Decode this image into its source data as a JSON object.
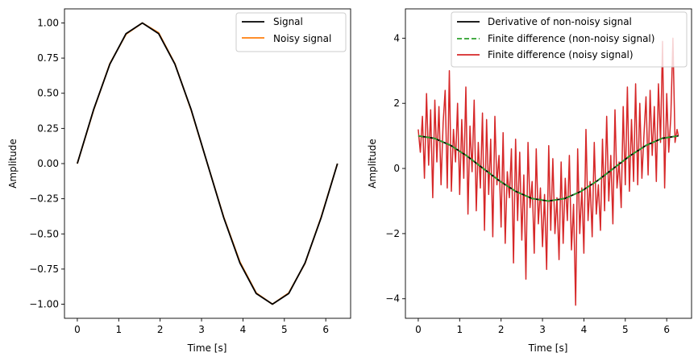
{
  "chart_data": [
    {
      "type": "line",
      "xlabel": "Time [s]",
      "ylabel": "Amplitude",
      "xlim": [
        -0.31,
        6.6
      ],
      "ylim": [
        -1.1,
        1.1
      ],
      "x_ticks": [
        0,
        1,
        2,
        3,
        4,
        5,
        6
      ],
      "y_ticks": [
        -1.0,
        -0.75,
        -0.5,
        -0.25,
        0.0,
        0.25,
        0.5,
        0.75,
        1.0
      ],
      "y_tick_labels": [
        "−1.00",
        "−0.75",
        "−0.50",
        "−0.25",
        "0.00",
        "0.25",
        "0.50",
        "0.75",
        "1.00"
      ],
      "x_tick_labels": [
        "0",
        "1",
        "2",
        "3",
        "4",
        "5",
        "6"
      ],
      "legend_position": "top-right",
      "grid": false,
      "series": [
        {
          "name": "Signal",
          "color": "#000000",
          "style": "solid",
          "x": [
            0,
            0.393,
            0.785,
            1.178,
            1.571,
            1.963,
            2.356,
            2.749,
            3.142,
            3.534,
            3.927,
            4.32,
            4.712,
            5.105,
            5.498,
            5.89,
            6.283
          ],
          "y": [
            0,
            0.383,
            0.707,
            0.924,
            1.0,
            0.924,
            0.707,
            0.383,
            0.0,
            -0.383,
            -0.707,
            -0.924,
            -1.0,
            -0.924,
            -0.707,
            -0.383,
            0.0
          ]
        },
        {
          "name": "Noisy signal",
          "color": "#ff7f0e",
          "style": "solid",
          "x": [
            0,
            0.393,
            0.785,
            1.178,
            1.571,
            1.963,
            2.356,
            2.749,
            3.142,
            3.534,
            3.927,
            4.32,
            4.712,
            5.105,
            5.498,
            5.89,
            6.283
          ],
          "y": [
            0,
            0.38,
            0.71,
            0.92,
            1.0,
            0.93,
            0.71,
            0.38,
            0.0,
            -0.38,
            -0.7,
            -0.92,
            -1.0,
            -0.92,
            -0.71,
            -0.38,
            0.0
          ]
        }
      ]
    },
    {
      "type": "line",
      "xlabel": "Time [s]",
      "ylabel": "Amplitude",
      "xlim": [
        -0.31,
        6.6
      ],
      "ylim": [
        -4.6,
        4.9
      ],
      "x_ticks": [
        0,
        1,
        2,
        3,
        4,
        5,
        6
      ],
      "x_tick_labels": [
        "0",
        "1",
        "2",
        "3",
        "4",
        "5",
        "6"
      ],
      "y_ticks": [
        -4,
        -2,
        0,
        2,
        4
      ],
      "y_tick_labels": [
        "−4",
        "−2",
        "0",
        "2",
        "4"
      ],
      "legend_position": "top-right",
      "grid": false,
      "series": [
        {
          "name": "Derivative of non-noisy signal",
          "color": "#000000",
          "style": "solid",
          "x": [
            0,
            0.393,
            0.785,
            1.178,
            1.571,
            1.963,
            2.356,
            2.749,
            3.142,
            3.534,
            3.927,
            4.32,
            4.712,
            5.105,
            5.498,
            5.89,
            6.283
          ],
          "y": [
            1.0,
            0.924,
            0.707,
            0.383,
            0.0,
            -0.383,
            -0.707,
            -0.924,
            -1.0,
            -0.924,
            -0.707,
            -0.383,
            0.0,
            0.383,
            0.707,
            0.924,
            1.0
          ]
        },
        {
          "name": "Finite difference (non-noisy signal)",
          "color": "#2ca02c",
          "style": "dashed",
          "x": [
            0,
            0.393,
            0.785,
            1.178,
            1.571,
            1.963,
            2.356,
            2.749,
            3.142,
            3.534,
            3.927,
            4.32,
            4.712,
            5.105,
            5.498,
            5.89,
            6.283
          ],
          "y": [
            1.0,
            0.924,
            0.707,
            0.383,
            0.0,
            -0.383,
            -0.707,
            -0.924,
            -1.0,
            -0.924,
            -0.707,
            -0.383,
            0.0,
            0.383,
            0.707,
            0.924,
            1.0
          ]
        },
        {
          "name": "Finite difference (noisy signal)",
          "color": "#d62728",
          "style": "solid",
          "x": [
            0.0,
            0.05,
            0.1,
            0.15,
            0.2,
            0.25,
            0.3,
            0.35,
            0.4,
            0.45,
            0.5,
            0.55,
            0.6,
            0.65,
            0.7,
            0.75,
            0.8,
            0.85,
            0.9,
            0.95,
            1.0,
            1.05,
            1.1,
            1.15,
            1.2,
            1.25,
            1.3,
            1.35,
            1.4,
            1.45,
            1.5,
            1.55,
            1.6,
            1.65,
            1.7,
            1.75,
            1.8,
            1.85,
            1.9,
            1.95,
            2.0,
            2.05,
            2.1,
            2.15,
            2.2,
            2.25,
            2.3,
            2.35,
            2.4,
            2.45,
            2.5,
            2.55,
            2.6,
            2.65,
            2.7,
            2.75,
            2.8,
            2.85,
            2.9,
            2.95,
            3.0,
            3.05,
            3.1,
            3.15,
            3.2,
            3.25,
            3.3,
            3.35,
            3.4,
            3.45,
            3.5,
            3.55,
            3.6,
            3.65,
            3.7,
            3.75,
            3.8,
            3.85,
            3.9,
            3.95,
            4.0,
            4.05,
            4.1,
            4.15,
            4.2,
            4.25,
            4.3,
            4.35,
            4.4,
            4.45,
            4.5,
            4.55,
            4.6,
            4.65,
            4.7,
            4.75,
            4.8,
            4.85,
            4.9,
            4.95,
            5.0,
            5.05,
            5.1,
            5.15,
            5.2,
            5.25,
            5.3,
            5.35,
            5.4,
            5.45,
            5.5,
            5.55,
            5.6,
            5.65,
            5.7,
            5.75,
            5.8,
            5.85,
            5.9,
            5.95,
            6.0,
            6.05,
            6.1,
            6.15,
            6.2,
            6.25,
            6.28
          ],
          "y": [
            1.2,
            0.5,
            1.6,
            -0.3,
            2.3,
            0.1,
            1.8,
            -0.9,
            2.1,
            0.2,
            1.9,
            -0.5,
            1.4,
            2.4,
            -0.6,
            3.0,
            -0.7,
            1.2,
            0.2,
            2.0,
            -0.8,
            1.5,
            -0.3,
            2.5,
            -1.4,
            1.3,
            -0.1,
            2.1,
            -1.3,
            0.8,
            -0.6,
            1.7,
            -1.9,
            1.5,
            -0.8,
            0.9,
            -2.1,
            1.6,
            -0.5,
            0.4,
            -1.8,
            1.1,
            -2.3,
            -0.1,
            -0.9,
            0.6,
            -2.9,
            0.9,
            -1.6,
            0.5,
            -2.2,
            -0.2,
            -3.4,
            0.8,
            -1.2,
            -0.4,
            -2.6,
            0.6,
            -1.7,
            -0.6,
            -2.4,
            -0.8,
            -3.1,
            0.7,
            -1.9,
            0.3,
            -2.0,
            -0.9,
            -2.8,
            0.2,
            -2.3,
            -0.3,
            -1.6,
            0.4,
            -2.5,
            -1.1,
            -4.2,
            0.6,
            -2.0,
            -0.6,
            -2.6,
            1.2,
            -1.6,
            -0.4,
            -2.1,
            0.8,
            -1.4,
            -0.5,
            -1.9,
            0.9,
            -1.3,
            1.6,
            -1.0,
            0.4,
            -1.7,
            1.8,
            -0.6,
            0.2,
            -1.2,
            1.9,
            -0.5,
            2.5,
            -0.7,
            1.5,
            -0.4,
            2.6,
            -0.5,
            2.0,
            -0.3,
            1.0,
            2.2,
            -0.2,
            2.4,
            0.4,
            1.9,
            -0.4,
            2.6,
            0.8,
            3.9,
            -0.6,
            2.3,
            0.5,
            1.6,
            4.0,
            0.8,
            1.2,
            1.0
          ]
        }
      ]
    }
  ]
}
